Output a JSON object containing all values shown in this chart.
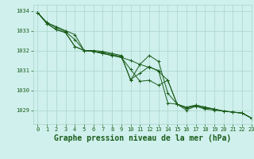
{
  "title": "Graphe pression niveau de la mer (hPa)",
  "background_color": "#cff0ec",
  "grid_color": "#aad4cc",
  "line_color": "#1a5c1a",
  "xlim": [
    -0.5,
    23
  ],
  "ylim": [
    1028.3,
    1034.3
  ],
  "yticks": [
    1029,
    1030,
    1031,
    1032,
    1033,
    1034
  ],
  "xticks": [
    0,
    1,
    2,
    3,
    4,
    5,
    6,
    7,
    8,
    9,
    10,
    11,
    12,
    13,
    14,
    15,
    16,
    17,
    18,
    19,
    20,
    21,
    22,
    23
  ],
  "series": [
    [
      1033.9,
      1033.4,
      1033.2,
      1033.0,
      1032.8,
      1032.0,
      1032.0,
      1031.95,
      1031.85,
      1031.75,
      1030.5,
      1031.3,
      1031.75,
      1031.45,
      1029.85,
      1029.3,
      1029.0,
      1029.2,
      1029.05,
      1029.0,
      1028.95,
      1028.9,
      1028.85,
      1028.6
    ],
    [
      1033.9,
      1033.4,
      1033.15,
      1032.95,
      1032.55,
      1032.0,
      1031.95,
      1031.9,
      1031.8,
      1031.7,
      1030.55,
      1030.85,
      1031.2,
      1030.95,
      1030.5,
      1029.3,
      1029.1,
      1029.2,
      1029.1,
      1029.05,
      1028.95,
      1028.9,
      1028.85,
      1028.6
    ],
    [
      1033.9,
      1033.35,
      1033.05,
      1032.9,
      1032.2,
      1032.0,
      1031.95,
      1031.85,
      1031.75,
      1031.65,
      1031.05,
      1030.45,
      1030.5,
      1030.25,
      1030.5,
      1029.3,
      1029.15,
      1029.25,
      1029.15,
      1029.05,
      1028.95,
      1028.9,
      1028.85,
      1028.6
    ],
    [
      1033.9,
      1033.35,
      1033.05,
      1032.9,
      1032.2,
      1032.0,
      1031.95,
      1031.85,
      1031.75,
      1031.65,
      1031.5,
      1031.3,
      1031.15,
      1031.0,
      1029.35,
      1029.3,
      1029.1,
      1029.25,
      1029.15,
      1029.05,
      1028.95,
      1028.9,
      1028.85,
      1028.6
    ]
  ],
  "marker": "+",
  "markersize": 3.5,
  "linewidth": 0.7,
  "title_fontsize": 7,
  "tick_fontsize": 5
}
